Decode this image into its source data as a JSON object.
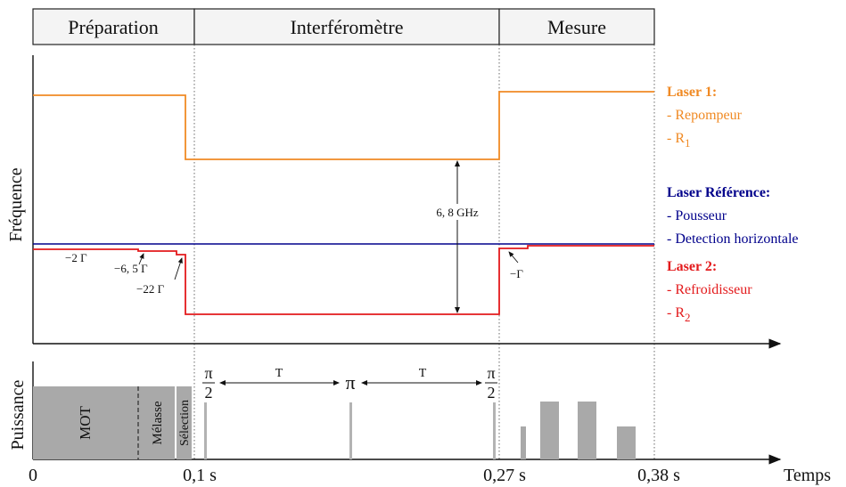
{
  "phases": [
    "Préparation",
    "Interféromètre",
    "Mesure"
  ],
  "axes": {
    "top_ylabel": "Fréquence",
    "bottom_ylabel": "Puissance",
    "xlabel": "Temps"
  },
  "ticks": {
    "t0": "0",
    "t1": "0,1 s",
    "t2": "0,27 s",
    "t3": "0,38 s"
  },
  "annotations": {
    "gap": "6, 8 GHz",
    "d1": "−2 Γ",
    "d2": "−6, 5 Γ",
    "d3": "−22 Γ",
    "d4": "−Γ"
  },
  "legend": {
    "laser1": {
      "title": "Laser 1:",
      "items": [
        "- Repompeur",
        "- R"
      ],
      "sub": "1",
      "color": "#f08a24"
    },
    "ref": {
      "title": "Laser Référence:",
      "items": [
        "- Pousseur",
        "- Detection horizontale"
      ],
      "color": "#00008b"
    },
    "laser2": {
      "title": "Laser 2:",
      "items": [
        "- Refroidisseur",
        "- R"
      ],
      "sub": "2",
      "color": "#e31a1c"
    }
  },
  "power": {
    "blocks": [
      "MOT",
      "Mélasse",
      "Sélection"
    ],
    "pulses": {
      "half": "π",
      "half_den": "2",
      "full": "π",
      "T": "T"
    }
  },
  "colors": {
    "pulse_gray": "#b3b3b3",
    "block_gray": "#a9a9a9"
  }
}
